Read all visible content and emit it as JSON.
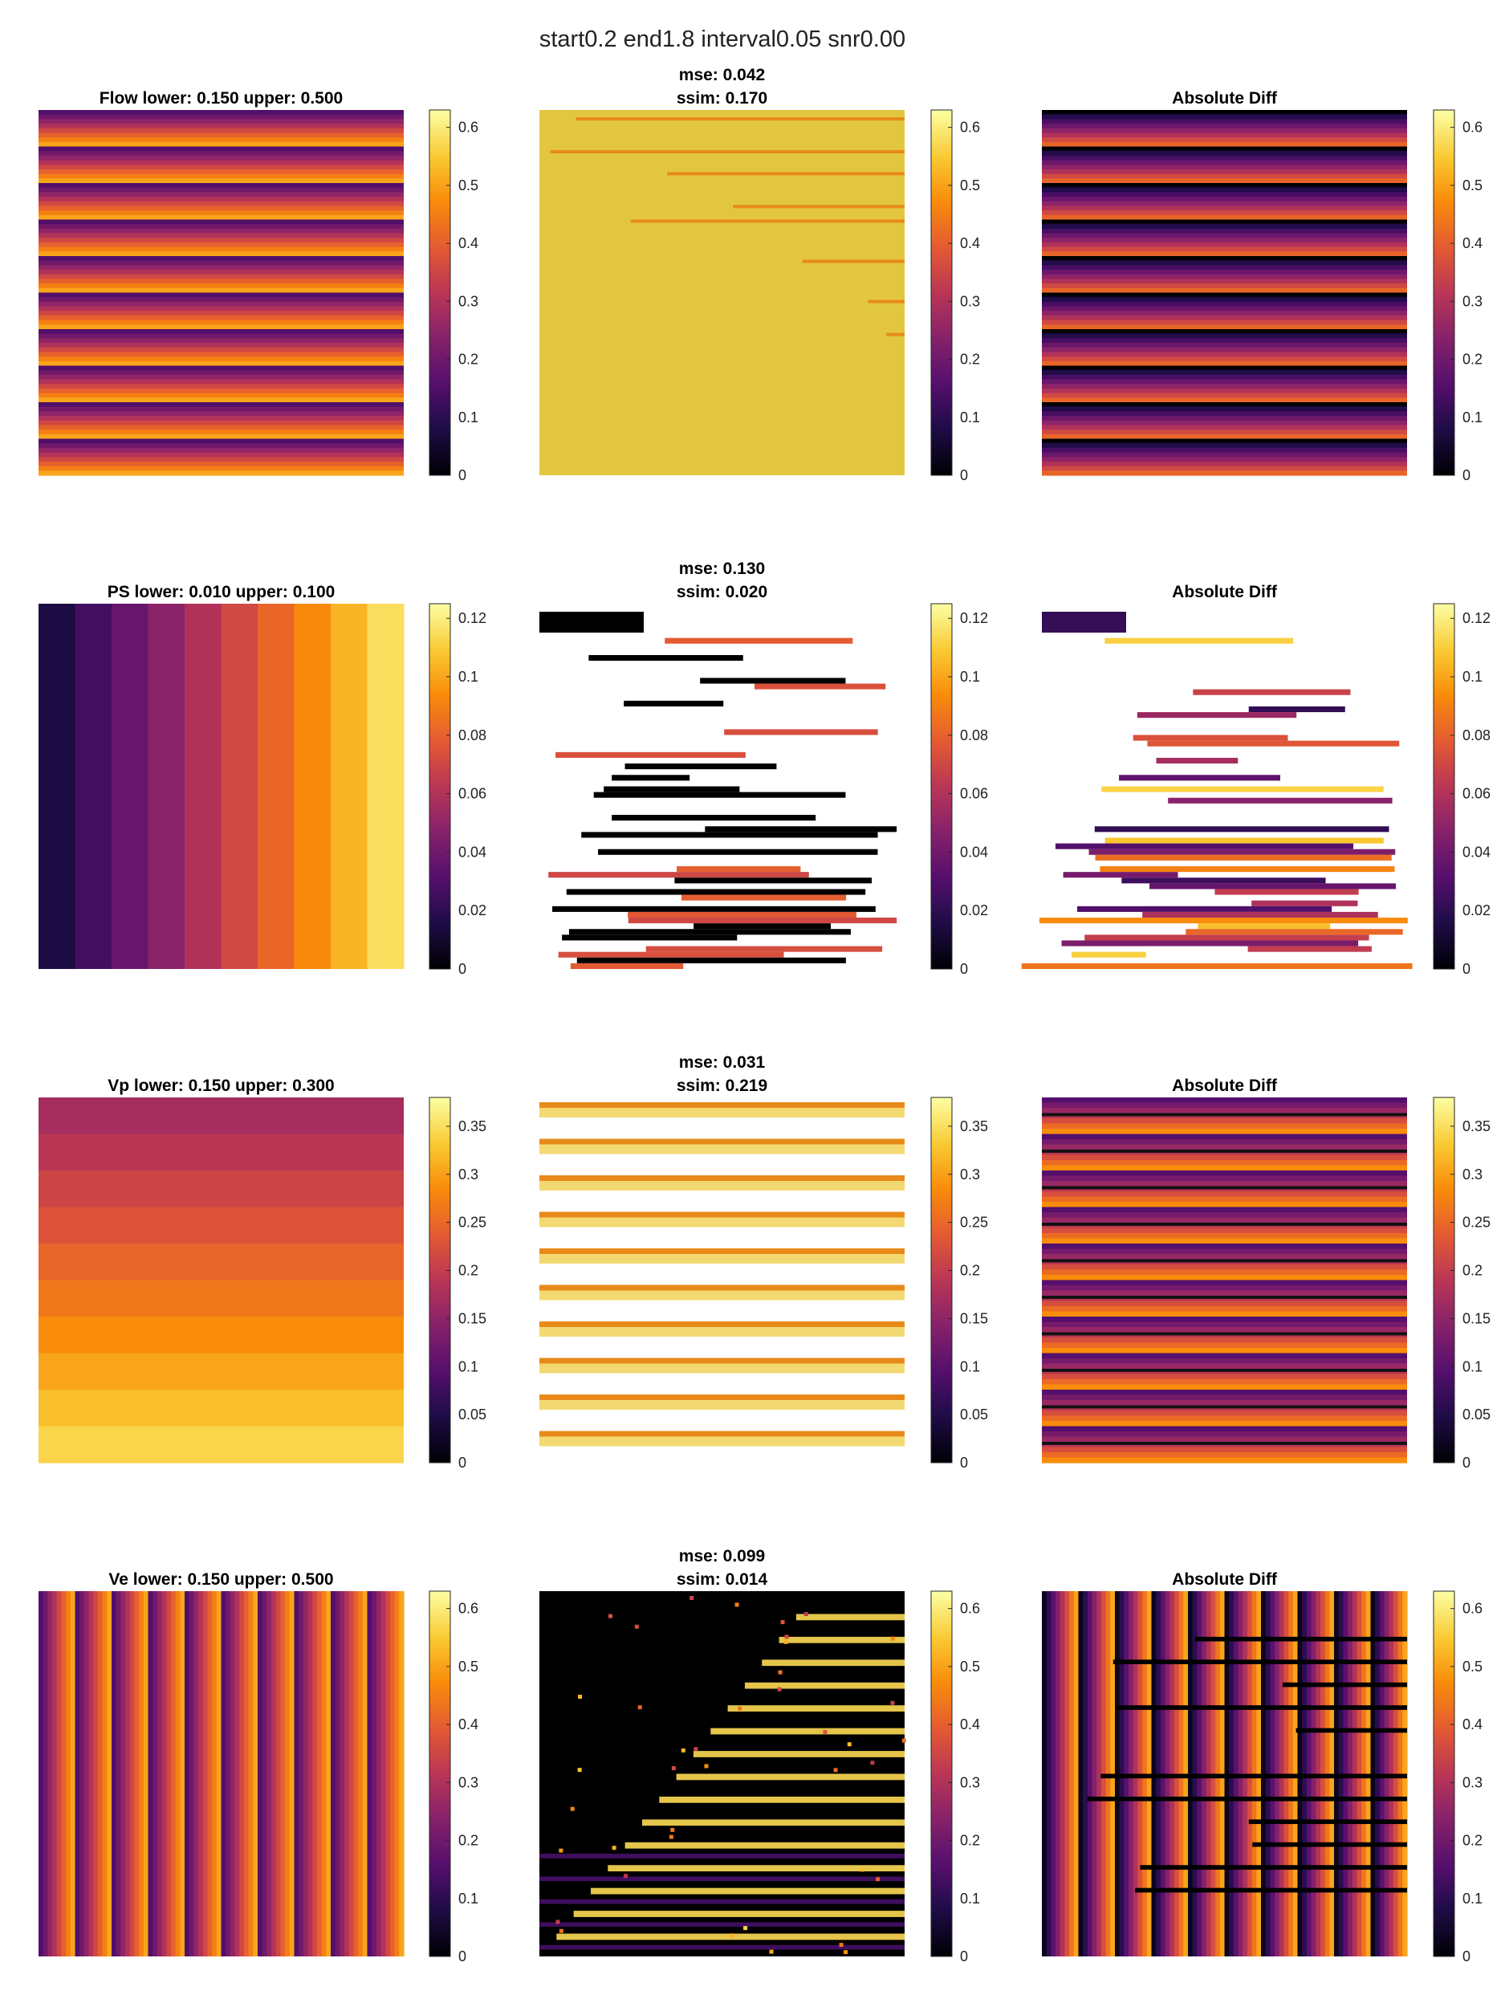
{
  "figure": {
    "suptitle": "start0.2 end1.8 interval0.05 snr0.00"
  },
  "chart_data": [
    {
      "type": "heatmap",
      "row": "Flow",
      "panels": [
        {
          "title_lines": [
            "Flow lower: 0.150 upper: 0.500"
          ],
          "pattern": "truth-horizontal"
        },
        {
          "title_lines": [
            "mse: 0.042",
            "ssim: 0.170"
          ],
          "pattern": "pred-flat-yellow"
        },
        {
          "title_lines": [
            "Absolute Diff"
          ],
          "pattern": "diff-horizontal"
        }
      ],
      "colorbar": {
        "colormap": "inferno-like",
        "clim": [
          0,
          0.63
        ],
        "ticks": [
          "0",
          "0.1",
          "0.2",
          "0.3",
          "0.4",
          "0.5",
          "0.6"
        ],
        "tick_values": [
          0,
          0.1,
          0.2,
          0.3,
          0.4,
          0.5,
          0.6
        ]
      }
    },
    {
      "type": "heatmap",
      "row": "PS",
      "panels": [
        {
          "title_lines": [
            "PS lower: 0.010 upper: 0.100"
          ],
          "pattern": "truth-vertical-bands"
        },
        {
          "title_lines": [
            "mse: 0.130",
            "ssim: 0.020"
          ],
          "pattern": "pred-sparse-white"
        },
        {
          "title_lines": [
            "Absolute Diff"
          ],
          "pattern": "diff-sparse-white"
        }
      ],
      "colorbar": {
        "colormap": "inferno-like",
        "clim": [
          0,
          0.125
        ],
        "ticks": [
          "0",
          "0.02",
          "0.04",
          "0.06",
          "0.08",
          "0.1",
          "0.12"
        ],
        "tick_values": [
          0,
          0.02,
          0.04,
          0.06,
          0.08,
          0.1,
          0.12
        ]
      }
    },
    {
      "type": "heatmap",
      "row": "Vp",
      "panels": [
        {
          "title_lines": [
            "Vp lower: 0.150 upper: 0.300"
          ],
          "pattern": "truth-horizontal-bands"
        },
        {
          "title_lines": [
            "mse: 0.031",
            "ssim: 0.219"
          ],
          "pattern": "pred-white-stripes"
        },
        {
          "title_lines": [
            "Absolute Diff"
          ],
          "pattern": "diff-horizontal-gradient"
        }
      ],
      "colorbar": {
        "colormap": "inferno-like",
        "clim": [
          0,
          0.38
        ],
        "ticks": [
          "0",
          "0.05",
          "0.1",
          "0.15",
          "0.2",
          "0.25",
          "0.3",
          "0.35"
        ],
        "tick_values": [
          0,
          0.05,
          0.1,
          0.15,
          0.2,
          0.25,
          0.3,
          0.35
        ]
      }
    },
    {
      "type": "heatmap",
      "row": "Ve",
      "panels": [
        {
          "title_lines": [
            "Ve lower: 0.150 upper: 0.500"
          ],
          "pattern": "truth-vertical"
        },
        {
          "title_lines": [
            "mse: 0.099",
            "ssim: 0.014"
          ],
          "pattern": "pred-black-stripes"
        },
        {
          "title_lines": [
            "Absolute Diff"
          ],
          "pattern": "diff-vertical-mixed"
        }
      ],
      "colorbar": {
        "colormap": "inferno-like",
        "clim": [
          0,
          0.63
        ],
        "ticks": [
          "0",
          "0.1",
          "0.2",
          "0.3",
          "0.4",
          "0.5",
          "0.6"
        ],
        "tick_values": [
          0,
          0.1,
          0.2,
          0.3,
          0.4,
          0.5,
          0.6
        ]
      }
    }
  ]
}
